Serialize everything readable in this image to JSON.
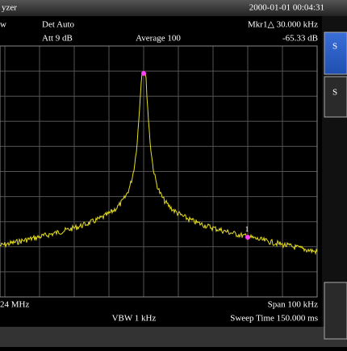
{
  "title_bar": {
    "title": "yzer",
    "datetime": "2000-01-01 00:04:31"
  },
  "header": {
    "row1_left": "w",
    "det": "Det Auto",
    "marker": "Mkr1△ 30.000 kHz",
    "att": "Att 9 dB",
    "average": "Average 100",
    "marker_value": "-65.33 dB"
  },
  "plot": {
    "marker_label": "1"
  },
  "footer": {
    "center_freq": "24 MHz",
    "span": "Span 100 kHz",
    "vbw": "VBW 1 kHz",
    "sweep": "Sweep Time 150.000 ms"
  },
  "side_panel": {
    "button1": "S",
    "button2": "S"
  }
}
